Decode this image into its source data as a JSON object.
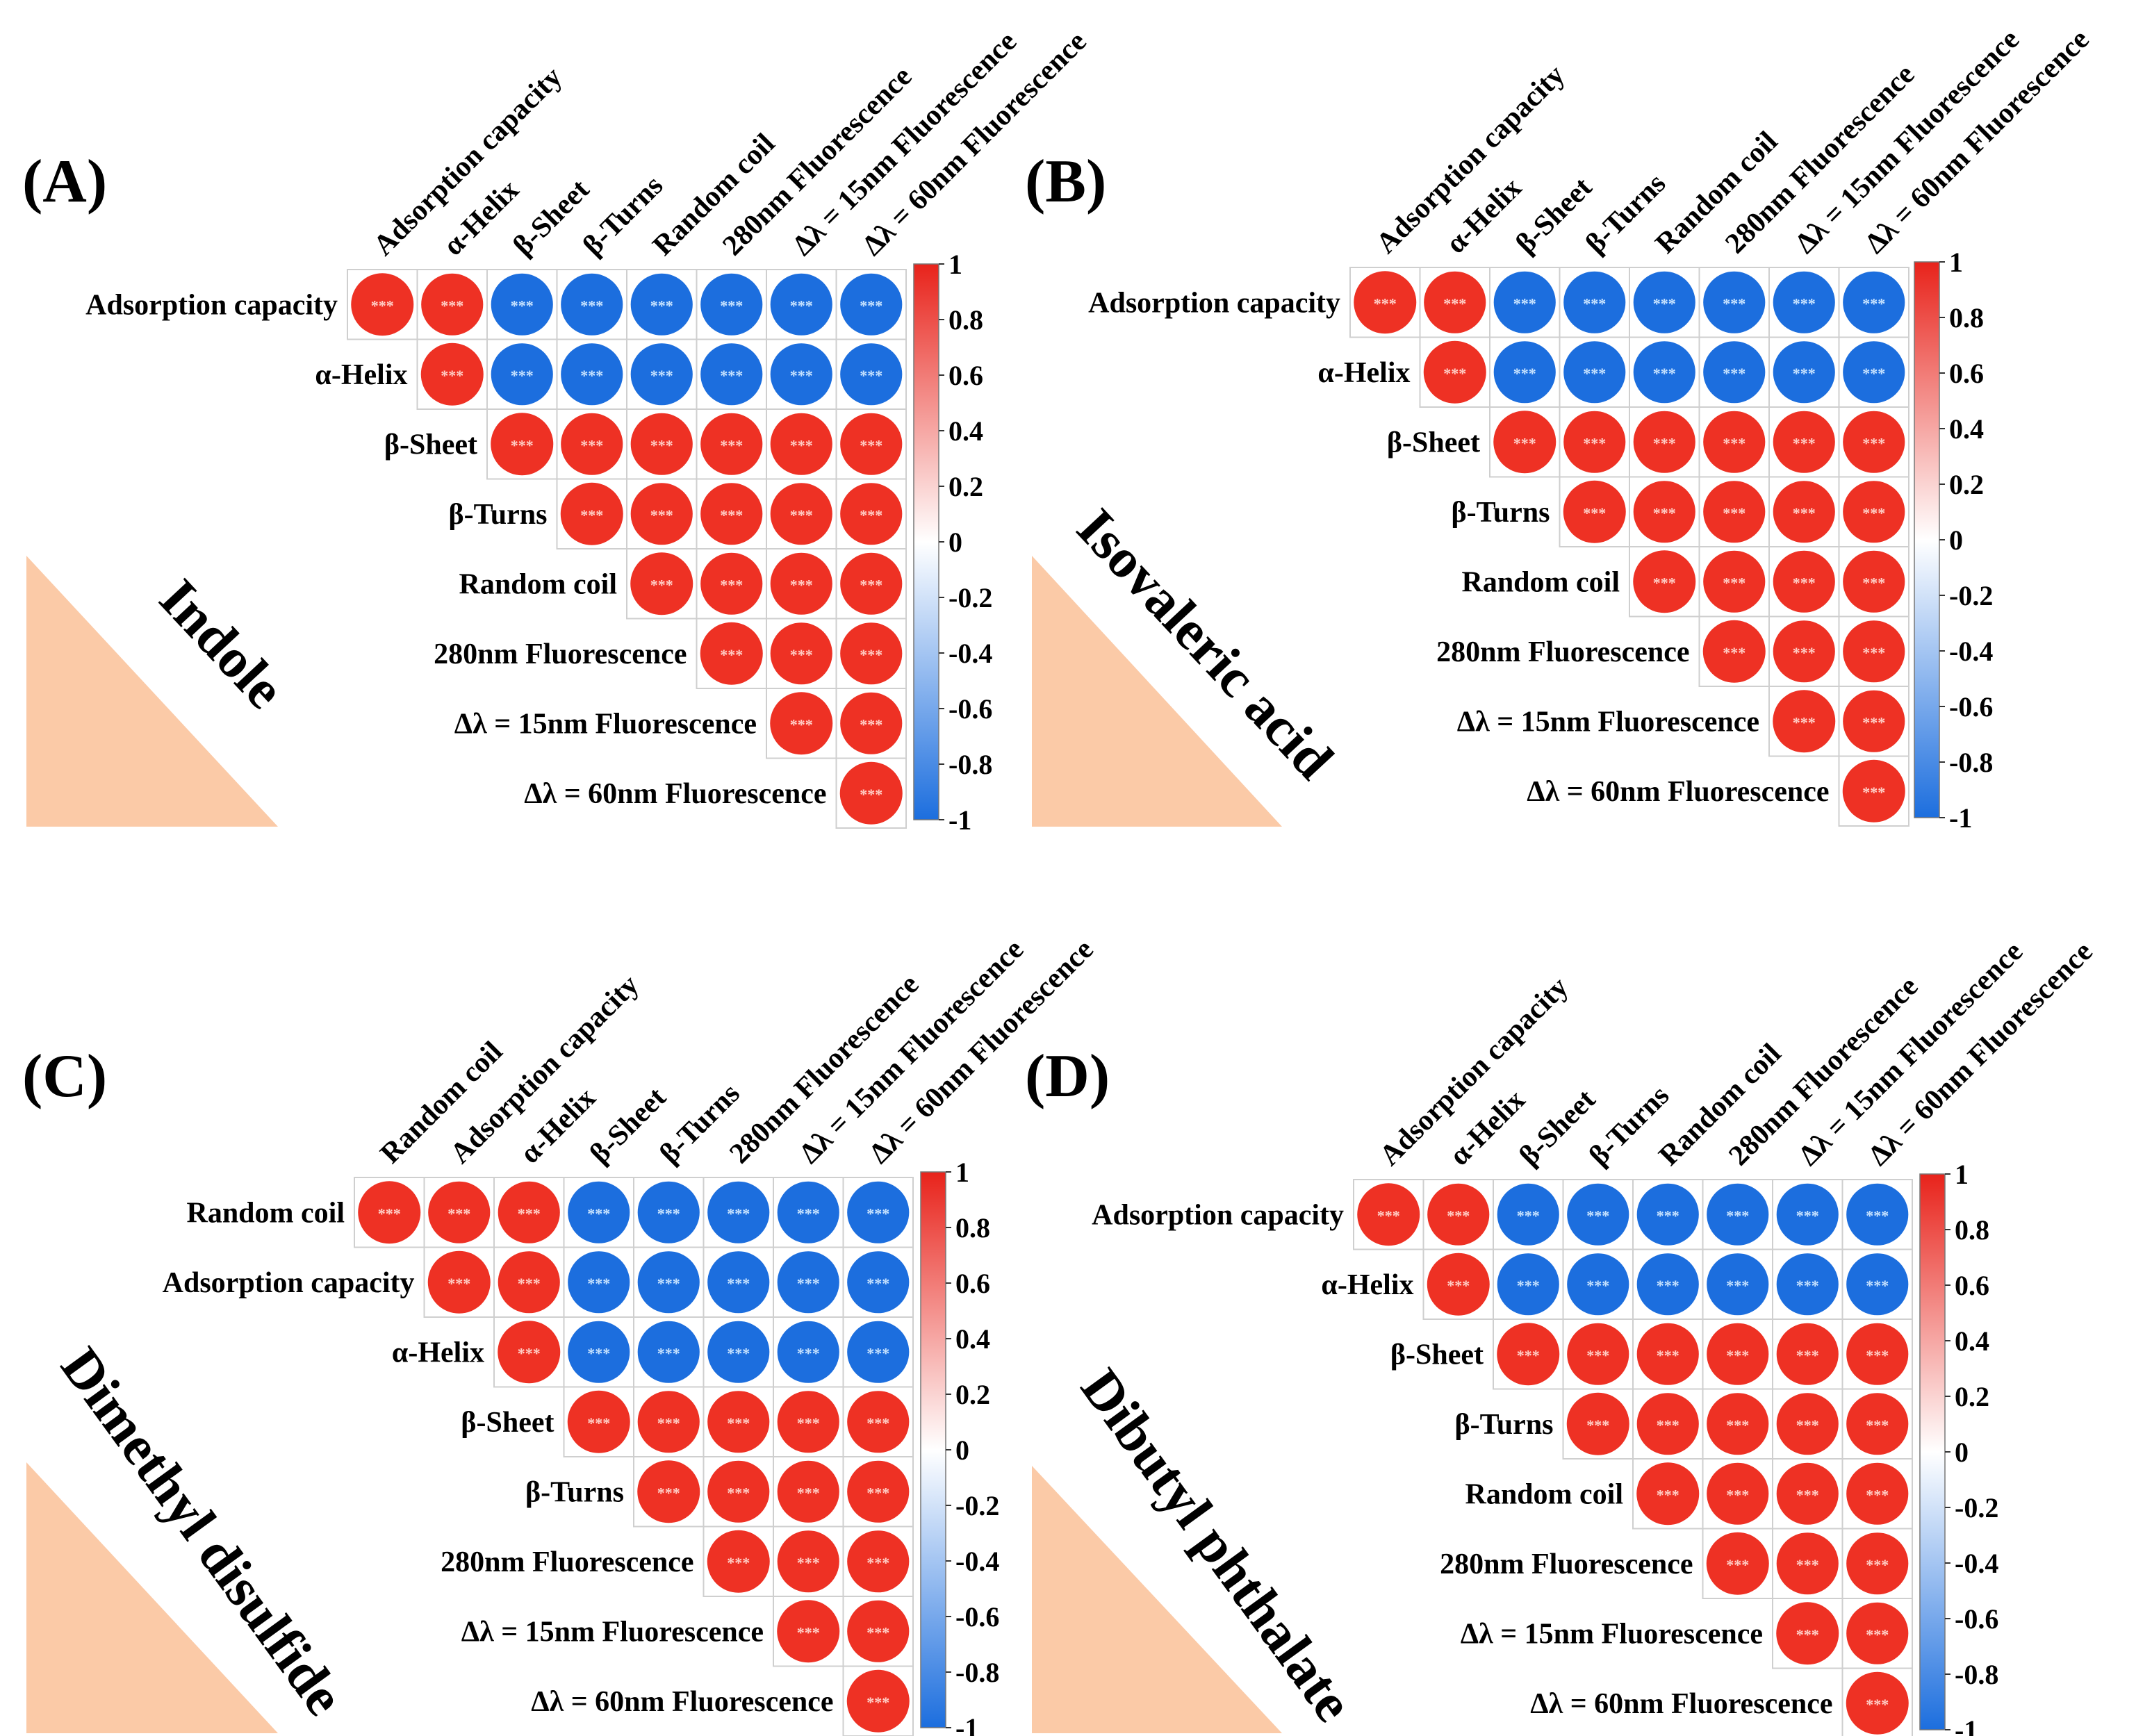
{
  "legend": {
    "ticks": [
      "1",
      "0.8",
      "0.6",
      "0.4",
      "0.2",
      "0",
      "-0.2",
      "-0.4",
      "-0.6",
      "-0.8",
      "-1"
    ],
    "colors": {
      "positive": "#ee3124",
      "negative": "#1c6ede",
      "neutral": "#ffffff"
    }
  },
  "significance": "***",
  "decoration": {
    "triangle_color": "#fbcaa7"
  },
  "chart_data": [
    {
      "type": "heatmap",
      "panel_label": "(A)",
      "title": "Indole",
      "variables": [
        "Adsorption capacity",
        "α-Helix",
        "β-Sheet",
        "β-Turns",
        "Random coil",
        "280nm Fluorescence",
        "Δλ = 15nm Fluorescence",
        "Δλ = 60nm Fluorescence"
      ],
      "values": [
        [
          1,
          0.99,
          -0.99,
          -0.99,
          -0.99,
          -0.99,
          -0.99,
          -0.99
        ],
        [
          null,
          1,
          -0.99,
          -0.99,
          -0.99,
          -0.99,
          -0.99,
          -0.99
        ],
        [
          null,
          null,
          1,
          0.99,
          0.99,
          0.99,
          0.99,
          0.99
        ],
        [
          null,
          null,
          null,
          1,
          0.99,
          0.99,
          0.99,
          0.99
        ],
        [
          null,
          null,
          null,
          null,
          1,
          0.99,
          0.99,
          0.99
        ],
        [
          null,
          null,
          null,
          null,
          null,
          1,
          0.99,
          0.99
        ],
        [
          null,
          null,
          null,
          null,
          null,
          null,
          1,
          0.99
        ],
        [
          null,
          null,
          null,
          null,
          null,
          null,
          null,
          1
        ]
      ],
      "color_range": [
        -1,
        1
      ]
    },
    {
      "type": "heatmap",
      "panel_label": "(B)",
      "title": "Isovaleric acid",
      "variables": [
        "Adsorption capacity",
        "α-Helix",
        "β-Sheet",
        "β-Turns",
        "Random coil",
        "280nm Fluorescence",
        "Δλ = 15nm Fluorescence",
        "Δλ = 60nm Fluorescence"
      ],
      "values": [
        [
          1,
          0.99,
          -0.99,
          -0.99,
          -0.99,
          -0.99,
          -0.99,
          -0.99
        ],
        [
          null,
          1,
          -0.99,
          -0.99,
          -0.99,
          -0.99,
          -0.99,
          -0.99
        ],
        [
          null,
          null,
          1,
          0.99,
          0.99,
          0.99,
          0.99,
          0.99
        ],
        [
          null,
          null,
          null,
          1,
          0.99,
          0.99,
          0.99,
          0.99
        ],
        [
          null,
          null,
          null,
          null,
          1,
          0.99,
          0.99,
          0.99
        ],
        [
          null,
          null,
          null,
          null,
          null,
          1,
          0.99,
          0.99
        ],
        [
          null,
          null,
          null,
          null,
          null,
          null,
          1,
          0.99
        ],
        [
          null,
          null,
          null,
          null,
          null,
          null,
          null,
          1
        ]
      ],
      "color_range": [
        -1,
        1
      ]
    },
    {
      "type": "heatmap",
      "panel_label": "(C)",
      "title": "Dimethyl disulfide",
      "variables": [
        "Random coil",
        "Adsorption capacity",
        "α-Helix",
        "β-Sheet",
        "β-Turns",
        "280nm Fluorescence",
        "Δλ = 15nm Fluorescence",
        "Δλ = 60nm Fluorescence"
      ],
      "values": [
        [
          1,
          0.99,
          0.99,
          -0.99,
          -0.99,
          -0.99,
          -0.99,
          -0.99
        ],
        [
          null,
          1,
          0.99,
          -0.99,
          -0.99,
          -0.99,
          -0.99,
          -0.99
        ],
        [
          null,
          null,
          1,
          -0.99,
          -0.99,
          -0.99,
          -0.99,
          -0.99
        ],
        [
          null,
          null,
          null,
          1,
          0.99,
          0.99,
          0.99,
          0.99
        ],
        [
          null,
          null,
          null,
          null,
          1,
          0.99,
          0.99,
          0.99
        ],
        [
          null,
          null,
          null,
          null,
          null,
          1,
          0.99,
          0.99
        ],
        [
          null,
          null,
          null,
          null,
          null,
          null,
          1,
          0.99
        ],
        [
          null,
          null,
          null,
          null,
          null,
          null,
          null,
          1
        ]
      ],
      "color_range": [
        -1,
        1
      ]
    },
    {
      "type": "heatmap",
      "panel_label": "(D)",
      "title": "Dibutyl phthalate",
      "variables": [
        "Adsorption capacity",
        "α-Helix",
        "β-Sheet",
        "β-Turns",
        "Random coil",
        "280nm Fluorescence",
        "Δλ = 15nm Fluorescence",
        "Δλ = 60nm Fluorescence"
      ],
      "values": [
        [
          1,
          0.99,
          -0.99,
          -0.99,
          -0.99,
          -0.99,
          -0.99,
          -0.99
        ],
        [
          null,
          1,
          -0.99,
          -0.99,
          -0.99,
          -0.99,
          -0.99,
          -0.99
        ],
        [
          null,
          null,
          1,
          0.99,
          0.99,
          0.99,
          0.99,
          0.99
        ],
        [
          null,
          null,
          null,
          1,
          0.99,
          0.99,
          0.99,
          0.99
        ],
        [
          null,
          null,
          null,
          null,
          1,
          0.99,
          0.99,
          0.99
        ],
        [
          null,
          null,
          null,
          null,
          null,
          1,
          0.99,
          0.99
        ],
        [
          null,
          null,
          null,
          null,
          null,
          null,
          1,
          0.99
        ],
        [
          null,
          null,
          null,
          null,
          null,
          null,
          null,
          1
        ]
      ],
      "color_range": [
        -1,
        1
      ]
    }
  ]
}
